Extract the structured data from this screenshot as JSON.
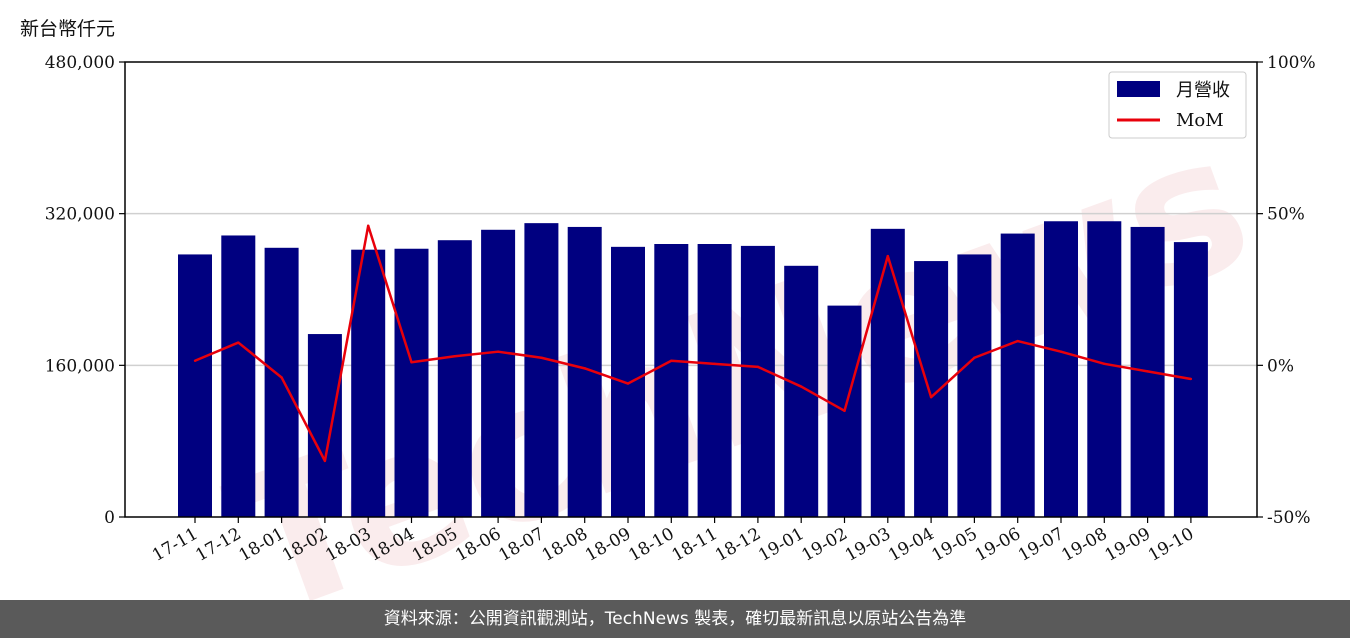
{
  "unit_label": "新台幣仟元",
  "footer_text": "資料來源：公開資訊觀測站，TechNews 製表，確切最新訊息以原站公告為準",
  "watermark_text": "TechNews",
  "colors": {
    "bar": "#000080",
    "line": "#e8000b",
    "grid": "#d0d0d0",
    "footer_bg": "#5a5a5a"
  },
  "chart_data": {
    "type": "bar",
    "categories": [
      "17-11",
      "17-12",
      "18-01",
      "18-02",
      "18-03",
      "18-04",
      "18-05",
      "18-06",
      "18-07",
      "18-08",
      "18-09",
      "18-10",
      "18-11",
      "18-12",
      "19-01",
      "19-02",
      "19-03",
      "19-04",
      "19-05",
      "19-06",
      "19-07",
      "19-08",
      "19-09",
      "19-10"
    ],
    "series": [
      {
        "name": "月營收",
        "axis": "left",
        "type": "bar",
        "values": [
          277000,
          297000,
          284000,
          193000,
          282000,
          283000,
          292000,
          303000,
          310000,
          306000,
          285000,
          288000,
          288000,
          286000,
          265000,
          223000,
          304000,
          270000,
          277000,
          299000,
          312000,
          312000,
          306000,
          290000
        ]
      },
      {
        "name": "MoM",
        "axis": "right",
        "type": "line",
        "values": [
          1.5,
          7.5,
          -4,
          -31.5,
          46,
          1,
          3,
          4.5,
          2.5,
          -1,
          -6,
          1.5,
          0.5,
          -0.5,
          -7,
          -15,
          36,
          -10.5,
          2.5,
          8,
          4.5,
          0.5,
          -2,
          -4.5
        ]
      }
    ],
    "left_axis": {
      "ylim": [
        0,
        480000
      ],
      "ticks": [
        "0",
        "160,000",
        "320,000",
        "480,000"
      ],
      "tick_values": [
        0,
        160000,
        320000,
        480000
      ]
    },
    "right_axis": {
      "ylim": [
        -50,
        100
      ],
      "ticks": [
        "-50%",
        "0%",
        "50%",
        "100%"
      ],
      "tick_values": [
        -50,
        0,
        50,
        100
      ]
    },
    "grid": true,
    "legend_position": "top-right"
  }
}
